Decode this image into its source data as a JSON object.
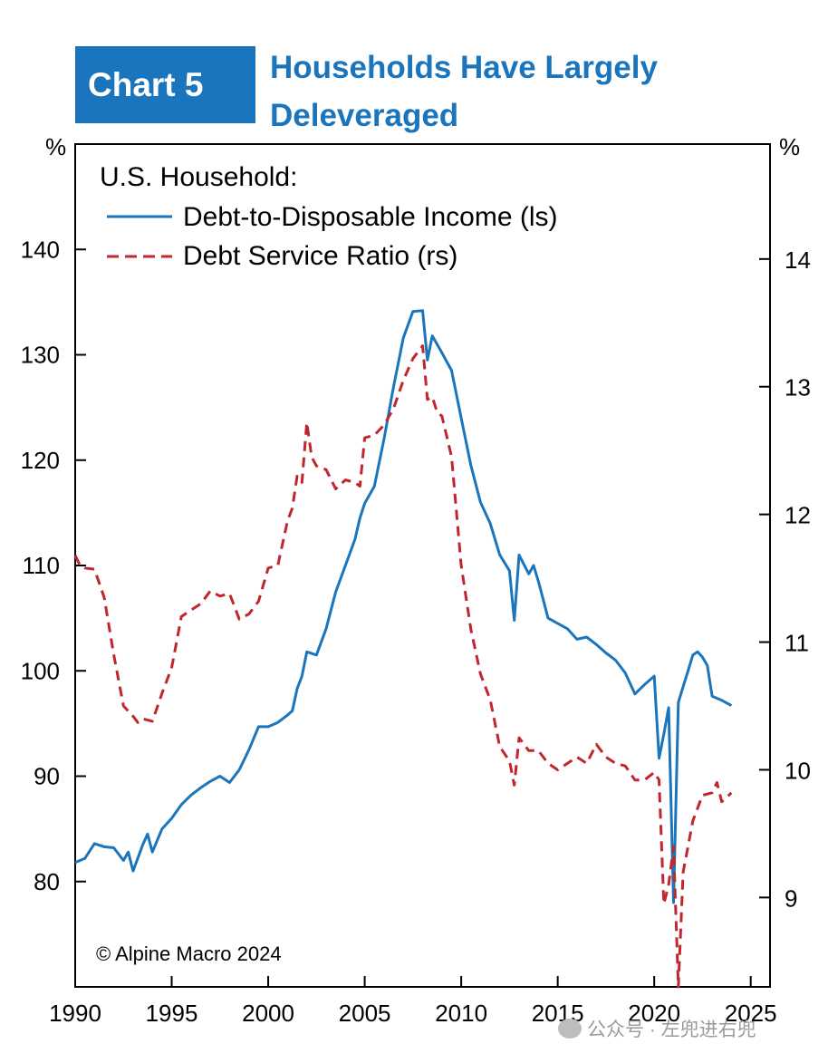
{
  "header": {
    "tag": "Chart 5",
    "title_line1": "Households Have Largely",
    "title_line2": "Deleveraged"
  },
  "watermark": {
    "text": "公众号 · 左兜进右兜",
    "icon": "wechat-icon"
  },
  "colors": {
    "accent": "#1a75bc",
    "series1": "#1a75bc",
    "series2": "#c0272d"
  },
  "chart_data": {
    "type": "line",
    "legend_title": "U.S. Household:",
    "legend_position": "top-left",
    "copyright": "© Alpine Macro 2024",
    "left_axis": {
      "unit": "%",
      "ylim": [
        70,
        150
      ],
      "ticks": [
        80,
        90,
        100,
        110,
        120,
        130,
        140
      ]
    },
    "right_axis": {
      "unit": "%",
      "ylim": [
        8.3,
        14.9
      ],
      "ticks": [
        9,
        10,
        11,
        12,
        13,
        14
      ]
    },
    "x_axis": {
      "xlim": [
        1990,
        2026
      ],
      "ticks": [
        1990,
        1995,
        2000,
        2005,
        2010,
        2015,
        2020,
        2025
      ]
    },
    "grid": false,
    "series": [
      {
        "name": "Debt-to-Disposable Income (ls)",
        "axis": "left",
        "style": "solid",
        "x": [
          1990.0,
          1990.5,
          1991.0,
          1991.5,
          1992.0,
          1992.5,
          1992.75,
          1993.0,
          1993.5,
          1993.75,
          1994.0,
          1994.5,
          1995.0,
          1995.5,
          1996.0,
          1996.5,
          1997.0,
          1997.5,
          1998.0,
          1998.5,
          1999.0,
          1999.5,
          2000.0,
          2000.5,
          2001.0,
          2001.25,
          2001.5,
          2001.75,
          2002.0,
          2002.5,
          2003.0,
          2003.5,
          2004.0,
          2004.5,
          2004.75,
          2005.0,
          2005.5,
          2006.0,
          2006.5,
          2007.0,
          2007.5,
          2008.0,
          2008.25,
          2008.5,
          2008.75,
          2009.0,
          2009.5,
          2010.0,
          2010.5,
          2011.0,
          2011.5,
          2012.0,
          2012.5,
          2012.75,
          2013.0,
          2013.5,
          2013.75,
          2014.0,
          2014.5,
          2015.0,
          2015.5,
          2016.0,
          2016.5,
          2017.0,
          2017.5,
          2018.0,
          2018.5,
          2019.0,
          2019.5,
          2020.0,
          2020.25,
          2020.5,
          2020.75,
          2021.0,
          2021.25,
          2021.5,
          2021.75,
          2022.0,
          2022.25,
          2022.5,
          2022.75,
          2023.0,
          2023.5,
          2024.0
        ],
        "values": [
          81.8,
          82.2,
          83.6,
          83.3,
          83.2,
          82.0,
          82.8,
          81.0,
          83.5,
          84.5,
          82.8,
          85.0,
          86.0,
          87.3,
          88.2,
          88.9,
          89.5,
          90.0,
          89.4,
          90.6,
          92.5,
          94.7,
          94.7,
          95.1,
          95.8,
          96.2,
          98.3,
          99.5,
          101.8,
          101.5,
          104.0,
          107.5,
          110.0,
          112.5,
          114.5,
          115.9,
          117.5,
          122.0,
          127.0,
          131.6,
          134.1,
          134.2,
          129.5,
          131.8,
          131.0,
          130.2,
          128.5,
          124.0,
          119.5,
          116.0,
          114.0,
          111.0,
          109.5,
          104.8,
          111.0,
          109.2,
          110.0,
          108.5,
          105.0,
          104.5,
          104.0,
          103.0,
          103.2,
          102.5,
          101.7,
          101.0,
          99.8,
          97.8,
          98.7,
          99.5,
          91.7,
          94.0,
          96.5,
          78.0,
          97.0,
          98.5,
          100.0,
          101.5,
          101.8,
          101.3,
          100.5,
          97.6,
          97.2,
          96.7
        ]
      },
      {
        "name": "Debt Service Ratio (rs)",
        "axis": "right",
        "style": "dashed",
        "x": [
          1990.0,
          1990.25,
          1990.5,
          1991.0,
          1991.5,
          1992.0,
          1992.5,
          1993.0,
          1993.25,
          1993.5,
          1994.0,
          1994.5,
          1995.0,
          1995.5,
          1996.0,
          1996.5,
          1997.0,
          1997.5,
          1998.0,
          1998.5,
          1999.0,
          1999.5,
          2000.0,
          2000.5,
          2001.0,
          2001.25,
          2001.5,
          2001.75,
          2002.0,
          2002.25,
          2002.5,
          2003.0,
          2003.5,
          2004.0,
          2004.5,
          2004.75,
          2005.0,
          2005.5,
          2006.0,
          2006.5,
          2007.0,
          2007.5,
          2008.0,
          2008.25,
          2008.5,
          2008.75,
          2009.0,
          2009.5,
          2010.0,
          2010.5,
          2011.0,
          2011.5,
          2012.0,
          2012.5,
          2012.75,
          2013.0,
          2013.5,
          2014.0,
          2014.5,
          2015.0,
          2015.5,
          2016.0,
          2016.5,
          2017.0,
          2017.5,
          2018.0,
          2018.5,
          2019.0,
          2019.5,
          2020.0,
          2020.25,
          2020.5,
          2020.75,
          2021.0,
          2021.25,
          2021.5,
          2021.75,
          2022.0,
          2022.5,
          2023.0,
          2023.25,
          2023.5,
          2024.0
        ],
        "values": [
          11.68,
          11.6,
          11.58,
          11.57,
          11.35,
          10.9,
          10.5,
          10.42,
          10.37,
          10.4,
          10.38,
          10.6,
          10.8,
          11.2,
          11.25,
          11.3,
          11.4,
          11.36,
          11.38,
          11.18,
          11.22,
          11.32,
          11.58,
          11.6,
          11.95,
          12.05,
          12.3,
          12.25,
          12.72,
          12.45,
          12.38,
          12.35,
          12.2,
          12.27,
          12.25,
          12.22,
          12.6,
          12.62,
          12.7,
          12.83,
          13.05,
          13.22,
          13.32,
          12.9,
          12.92,
          12.8,
          12.77,
          12.45,
          11.6,
          11.1,
          10.75,
          10.55,
          10.18,
          10.07,
          9.88,
          10.25,
          10.15,
          10.15,
          10.05,
          10.0,
          10.05,
          10.1,
          10.05,
          10.2,
          10.1,
          10.05,
          10.03,
          9.92,
          9.92,
          9.98,
          9.92,
          8.95,
          9.1,
          9.4,
          8.3,
          9.2,
          9.4,
          9.6,
          9.8,
          9.82,
          9.9,
          9.75,
          9.82
        ]
      }
    ]
  }
}
